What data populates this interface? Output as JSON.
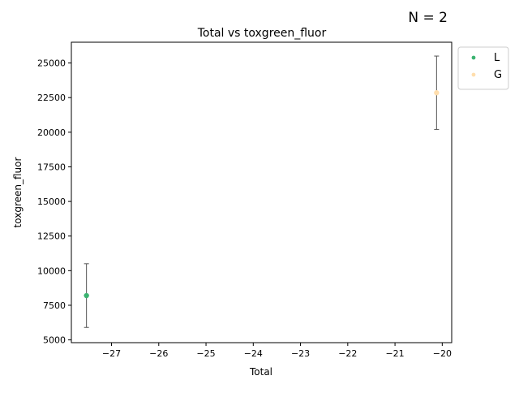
{
  "annotation": "N = 2",
  "chart_data": {
    "type": "scatter",
    "title": "Total vs toxgreen_fluor",
    "xlabel": "Total",
    "ylabel": "toxgreen_fluor",
    "xlim": [
      -27.85,
      -19.8
    ],
    "ylim": [
      4800,
      26500
    ],
    "xticks": [
      -27,
      -26,
      -25,
      -24,
      -23,
      -22,
      -21,
      -20
    ],
    "xtick_labels": [
      "−27",
      "−26",
      "−25",
      "−24",
      "−23",
      "−22",
      "−21",
      "−20"
    ],
    "yticks": [
      5000,
      7500,
      10000,
      12500,
      15000,
      17500,
      20000,
      22500,
      25000
    ],
    "ytick_labels": [
      "5000",
      "7500",
      "10000",
      "12500",
      "15000",
      "17500",
      "20000",
      "22500",
      "25000"
    ],
    "grid": false,
    "legend_position": "outside-top-right",
    "error_bar_color": "#555555",
    "series": [
      {
        "name": "L",
        "color": "#3cb371",
        "x": [
          -27.53
        ],
        "y": [
          8200
        ],
        "err_low": [
          5900
        ],
        "err_high": [
          10500
        ]
      },
      {
        "name": "G",
        "color": "#ffdead",
        "x": [
          -20.12
        ],
        "y": [
          22850
        ],
        "err_low": [
          20200
        ],
        "err_high": [
          25500
        ]
      }
    ]
  }
}
